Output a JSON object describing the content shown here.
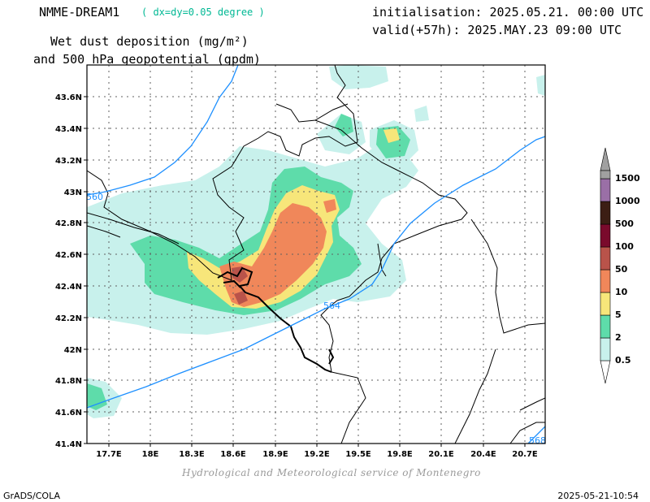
{
  "header": {
    "model": "NMME-DREAM1",
    "resolution": "( dx=dy=0.05 degree )",
    "product_line1": "Wet dust deposition (mg/m²)",
    "product_line2": "and 500 hPa geopotential (gpdm)",
    "initialisation": "initialisation: 2025.05.21. 00:00 UTC",
    "valid": "valid(+57h): 2025.MAY.23 09:00 UTC"
  },
  "map": {
    "lon_ticks": [
      "17.7E",
      "18E",
      "18.3E",
      "18.6E",
      "18.9E",
      "19.2E",
      "19.5E",
      "19.8E",
      "20.1E",
      "20.4E",
      "20.7E"
    ],
    "lat_ticks": [
      "43.6N",
      "43.4N",
      "43.2N",
      "43N",
      "42.8N",
      "42.6N",
      "42.4N",
      "42.2N",
      "42N",
      "41.8N",
      "41.6N",
      "41.4N"
    ],
    "contour_labels": [
      "560",
      "564",
      "568"
    ],
    "contour_color": "#1e90ff"
  },
  "legend": {
    "levels": [
      "0.5",
      "2",
      "5",
      "10",
      "50",
      "100",
      "500",
      "1000",
      "1500"
    ],
    "colors": [
      "#c8f1ec",
      "#5edcaa",
      "#f7e67a",
      "#f0875a",
      "#b9534a",
      "#7a0a2c",
      "#3c1e14",
      "#3c1e14",
      "#9a6fa6",
      "#a0a0a0"
    ]
  },
  "footer": {
    "credit": "Hydrological and Meteorological service of Montenegro",
    "left": "GrADS/COLA",
    "right": "2025-05-21-10:54"
  }
}
